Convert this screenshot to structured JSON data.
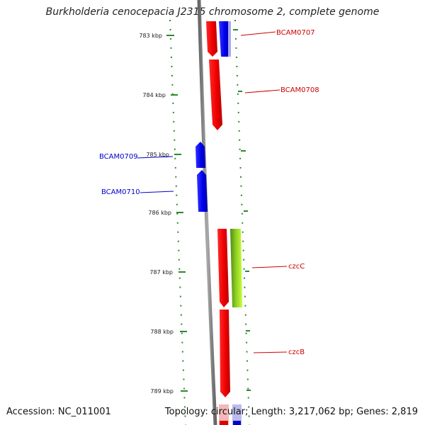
{
  "title": "Burkholderia cenocepacia J2315 chromosome 2, complete genome",
  "accession_text": "Accession: NC_011001",
  "stats_text": "Topology: circular; Length: 3,217,062 bp; Genes: 2,819",
  "colors": {
    "forward_gene": "#ff0000",
    "reverse_gene": "#0000ff",
    "cog_gene": "#99dd22",
    "backbone": "#888888",
    "tick": "#2a8a2a"
  },
  "ticks": [
    {
      "label": "783 kbp"
    },
    {
      "label": "784 kbp"
    },
    {
      "label": "785 kbp"
    },
    {
      "label": "786 kbp"
    },
    {
      "label": "787 kbp"
    },
    {
      "label": "788 kbp"
    },
    {
      "label": "789 kbp"
    }
  ],
  "genes": [
    {
      "label": "BCAM0707",
      "strand": "forward"
    },
    {
      "label": "BCAM0708",
      "strand": "forward"
    },
    {
      "label": "BCAM0709",
      "strand": "reverse"
    },
    {
      "label": "BCAM0710",
      "strand": "reverse"
    },
    {
      "label": "czcC",
      "strand": "forward"
    },
    {
      "label": "czcB",
      "strand": "forward"
    }
  ]
}
